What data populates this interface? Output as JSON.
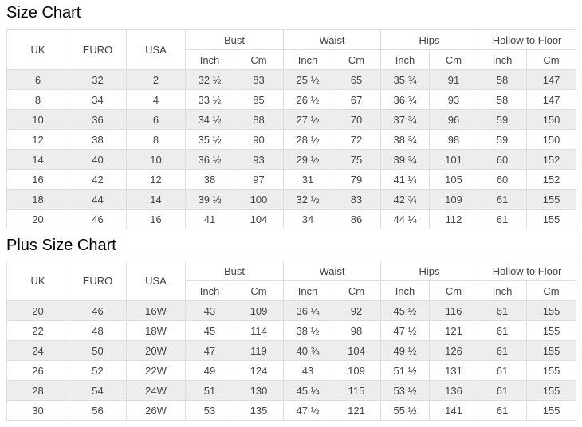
{
  "colors": {
    "row_stripe": "#ededed",
    "table_border": "#dddddd",
    "cell_text": "#444444",
    "title_text": "#000000"
  },
  "chart_data": [
    {
      "type": "table",
      "title": "Size Chart",
      "column_groups": [
        {
          "label": "UK"
        },
        {
          "label": "EURO"
        },
        {
          "label": "USA"
        },
        {
          "label": "Bust",
          "sub": [
            "Inch",
            "Cm"
          ]
        },
        {
          "label": "Waist",
          "sub": [
            "Inch",
            "Cm"
          ]
        },
        {
          "label": "Hips",
          "sub": [
            "Inch",
            "Cm"
          ]
        },
        {
          "label": "Hollow to Floor",
          "sub": [
            "Inch",
            "Cm"
          ]
        }
      ],
      "rows": [
        [
          "6",
          "32",
          "2",
          "32 ½",
          "83",
          "25 ½",
          "65",
          "35 ¾",
          "91",
          "58",
          "147"
        ],
        [
          "8",
          "34",
          "4",
          "33 ½",
          "85",
          "26 ½",
          "67",
          "36 ¾",
          "93",
          "58",
          "147"
        ],
        [
          "10",
          "36",
          "6",
          "34 ½",
          "88",
          "27 ½",
          "70",
          "37 ¾",
          "96",
          "59",
          "150"
        ],
        [
          "12",
          "38",
          "8",
          "35 ½",
          "90",
          "28 ½",
          "72",
          "38 ¾",
          "98",
          "59",
          "150"
        ],
        [
          "14",
          "40",
          "10",
          "36 ½",
          "93",
          "29 ½",
          "75",
          "39 ¾",
          "101",
          "60",
          "152"
        ],
        [
          "16",
          "42",
          "12",
          "38",
          "97",
          "31",
          "79",
          "41 ¼",
          "105",
          "60",
          "152"
        ],
        [
          "18",
          "44",
          "14",
          "39 ½",
          "100",
          "32 ½",
          "83",
          "42 ¾",
          "109",
          "61",
          "155"
        ],
        [
          "20",
          "46",
          "16",
          "41",
          "104",
          "34",
          "86",
          "44 ¼",
          "112",
          "61",
          "155"
        ]
      ]
    },
    {
      "type": "table",
      "title": "Plus Size Chart",
      "column_groups": [
        {
          "label": "UK"
        },
        {
          "label": "EURO"
        },
        {
          "label": "USA"
        },
        {
          "label": "Bust",
          "sub": [
            "Inch",
            "Cm"
          ]
        },
        {
          "label": "Waist",
          "sub": [
            "Inch",
            "Cm"
          ]
        },
        {
          "label": "Hips",
          "sub": [
            "Inch",
            "Cm"
          ]
        },
        {
          "label": "Hollow to Floor",
          "sub": [
            "Inch",
            "Cm"
          ]
        }
      ],
      "rows": [
        [
          "20",
          "46",
          "16W",
          "43",
          "109",
          "36 ¼",
          "92",
          "45 ½",
          "116",
          "61",
          "155"
        ],
        [
          "22",
          "48",
          "18W",
          "45",
          "114",
          "38 ½",
          "98",
          "47 ½",
          "121",
          "61",
          "155"
        ],
        [
          "24",
          "50",
          "20W",
          "47",
          "119",
          "40 ¾",
          "104",
          "49 ½",
          "126",
          "61",
          "155"
        ],
        [
          "26",
          "52",
          "22W",
          "49",
          "124",
          "43",
          "109",
          "51 ½",
          "131",
          "61",
          "155"
        ],
        [
          "28",
          "54",
          "24W",
          "51",
          "130",
          "45 ¼",
          "115",
          "53 ½",
          "136",
          "61",
          "155"
        ],
        [
          "30",
          "56",
          "26W",
          "53",
          "135",
          "47 ½",
          "121",
          "55 ½",
          "141",
          "61",
          "155"
        ]
      ]
    }
  ]
}
